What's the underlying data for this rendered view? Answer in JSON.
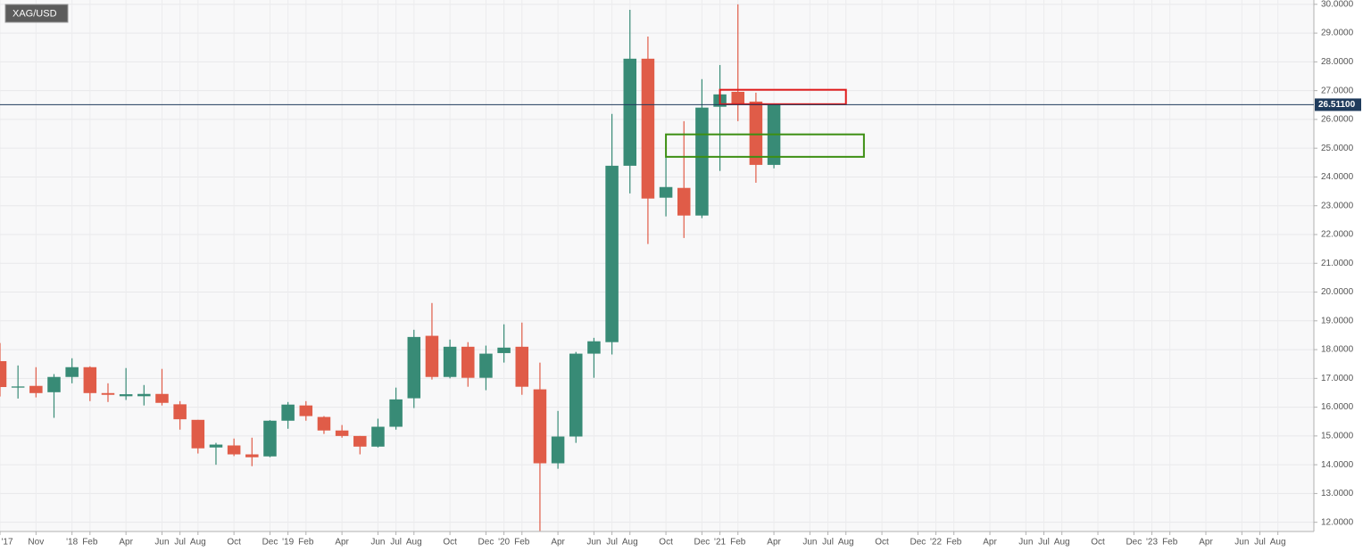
{
  "chart_data": {
    "type": "candlestick",
    "title": "XAG/USD",
    "x": [
      "2017-09",
      "2017-10",
      "2017-11",
      "2017-12",
      "2018-01",
      "2018-02",
      "2018-03",
      "2018-04",
      "2018-05",
      "2018-06",
      "2018-07",
      "2018-08",
      "2018-09",
      "2018-10",
      "2018-11",
      "2018-12",
      "2019-01",
      "2019-02",
      "2019-03",
      "2019-04",
      "2019-05",
      "2019-06",
      "2019-07",
      "2019-08",
      "2019-09",
      "2019-10",
      "2019-11",
      "2019-12",
      "2020-01",
      "2020-02",
      "2020-03",
      "2020-04",
      "2020-05",
      "2020-06",
      "2020-07",
      "2020-08",
      "2020-09",
      "2020-10",
      "2020-11",
      "2020-12",
      "2021-01",
      "2021-02",
      "2021-03",
      "2021-04"
    ],
    "open": [
      17.6,
      16.68,
      16.74,
      16.52,
      17.05,
      17.39,
      16.49,
      16.38,
      16.38,
      16.46,
      16.1,
      15.56,
      14.6,
      14.67,
      14.36,
      14.29,
      15.53,
      16.06,
      15.66,
      15.19,
      15.0,
      14.63,
      15.32,
      16.31,
      18.48,
      17.05,
      18.1,
      17.02,
      17.88,
      18.1,
      16.62,
      14.05,
      14.98,
      17.86,
      18.26,
      24.39,
      28.11,
      23.28,
      23.62,
      22.66,
      26.44,
      26.96,
      26.62,
      24.42
    ],
    "high": [
      18.23,
      17.45,
      17.39,
      17.15,
      17.7,
      17.42,
      16.83,
      17.36,
      16.77,
      17.33,
      16.21,
      15.56,
      14.76,
      14.91,
      14.94,
      15.55,
      16.18,
      16.21,
      15.69,
      15.38,
      15.0,
      15.6,
      16.68,
      18.69,
      19.62,
      18.35,
      18.26,
      18.14,
      18.88,
      18.94,
      17.55,
      15.87,
      17.92,
      18.41,
      26.19,
      29.81,
      28.88,
      24.73,
      25.94,
      27.4,
      27.89,
      30.0,
      26.93,
      26.55
    ],
    "low": [
      16.37,
      16.3,
      16.34,
      15.63,
      16.83,
      16.21,
      16.18,
      16.25,
      16.06,
      16.06,
      15.22,
      14.39,
      14.0,
      14.3,
      13.95,
      14.26,
      15.25,
      15.53,
      15.07,
      14.94,
      14.36,
      14.6,
      15.22,
      15.97,
      16.96,
      17.0,
      16.71,
      16.59,
      17.55,
      16.43,
      11.7,
      13.86,
      14.76,
      17.02,
      17.83,
      23.43,
      21.67,
      22.63,
      21.88,
      22.57,
      24.21,
      25.94,
      23.8,
      24.3
    ],
    "close": [
      16.7,
      16.72,
      16.49,
      17.05,
      17.39,
      16.49,
      16.43,
      16.45,
      16.46,
      16.15,
      15.58,
      14.57,
      14.7,
      14.36,
      14.26,
      15.53,
      16.09,
      15.69,
      15.19,
      15.0,
      14.63,
      15.32,
      16.27,
      18.44,
      17.05,
      18.1,
      17.02,
      17.86,
      18.07,
      16.71,
      14.05,
      14.98,
      17.86,
      18.29,
      24.39,
      28.11,
      23.25,
      23.65,
      22.66,
      26.41,
      26.87,
      26.53,
      24.42,
      26.511
    ],
    "up_color": "#388b76",
    "down_color": "#e05c48",
    "xlim": [
      "2017-09",
      "2023-10"
    ],
    "ylim": [
      11.68,
      30.15
    ],
    "yticks": [
      {
        "value": 12,
        "label": "12.0000"
      },
      {
        "value": 13,
        "label": "13.0000"
      },
      {
        "value": 14,
        "label": "14.0000"
      },
      {
        "value": 15,
        "label": "15.0000"
      },
      {
        "value": 16,
        "label": "16.0000"
      },
      {
        "value": 17,
        "label": "17.0000"
      },
      {
        "value": 18,
        "label": "18.0000"
      },
      {
        "value": 19,
        "label": "19.0000"
      },
      {
        "value": 20,
        "label": "20.0000"
      },
      {
        "value": 21,
        "label": "21.0000"
      },
      {
        "value": 22,
        "label": "22.0000"
      },
      {
        "value": 23,
        "label": "23.0000"
      },
      {
        "value": 24,
        "label": "24.0000"
      },
      {
        "value": 25,
        "label": "25.0000"
      },
      {
        "value": 26,
        "label": "26.0000"
      },
      {
        "value": 27,
        "label": "27.0000"
      },
      {
        "value": 28,
        "label": "28.0000"
      },
      {
        "value": 29,
        "label": "29.0000"
      },
      {
        "value": 30,
        "label": "30.0000"
      }
    ],
    "xticks": [
      {
        "value": "2017-09",
        "label": "'17"
      },
      {
        "value": "2017-11",
        "label": "Nov"
      },
      {
        "value": "2018-01",
        "label": "'18"
      },
      {
        "value": "2018-02",
        "label": "Feb"
      },
      {
        "value": "2018-04",
        "label": "Apr"
      },
      {
        "value": "2018-06",
        "label": "Jun"
      },
      {
        "value": "2018-07",
        "label": "Jul"
      },
      {
        "value": "2018-08",
        "label": "Aug"
      },
      {
        "value": "2018-10",
        "label": "Oct"
      },
      {
        "value": "2018-12",
        "label": "Dec"
      },
      {
        "value": "2019-01",
        "label": "'19"
      },
      {
        "value": "2019-02",
        "label": "Feb"
      },
      {
        "value": "2019-04",
        "label": "Apr"
      },
      {
        "value": "2019-06",
        "label": "Jun"
      },
      {
        "value": "2019-07",
        "label": "Jul"
      },
      {
        "value": "2019-08",
        "label": "Aug"
      },
      {
        "value": "2019-10",
        "label": "Oct"
      },
      {
        "value": "2019-12",
        "label": "Dec"
      },
      {
        "value": "2020-01",
        "label": "'20"
      },
      {
        "value": "2020-02",
        "label": "Feb"
      },
      {
        "value": "2020-04",
        "label": "Apr"
      },
      {
        "value": "2020-06",
        "label": "Jun"
      },
      {
        "value": "2020-07",
        "label": "Jul"
      },
      {
        "value": "2020-08",
        "label": "Aug"
      },
      {
        "value": "2020-10",
        "label": "Oct"
      },
      {
        "value": "2020-12",
        "label": "Dec"
      },
      {
        "value": "2021-01",
        "label": "'21"
      },
      {
        "value": "2021-02",
        "label": "Feb"
      },
      {
        "value": "2021-04",
        "label": "Apr"
      },
      {
        "value": "2021-06",
        "label": "Jun"
      },
      {
        "value": "2021-07",
        "label": "Jul"
      },
      {
        "value": "2021-08",
        "label": "Aug"
      },
      {
        "value": "2021-10",
        "label": "Oct"
      },
      {
        "value": "2021-12",
        "label": "Dec"
      },
      {
        "value": "2022-01",
        "label": "'22"
      },
      {
        "value": "2022-02",
        "label": "Feb"
      },
      {
        "value": "2022-04",
        "label": "Apr"
      },
      {
        "value": "2022-06",
        "label": "Jun"
      },
      {
        "value": "2022-07",
        "label": "Jul"
      },
      {
        "value": "2022-08",
        "label": "Aug"
      },
      {
        "value": "2022-10",
        "label": "Oct"
      },
      {
        "value": "2022-12",
        "label": "Dec"
      },
      {
        "value": "2023-01",
        "label": "'23"
      },
      {
        "value": "2023-02",
        "label": "Feb"
      },
      {
        "value": "2023-04",
        "label": "Apr"
      },
      {
        "value": "2023-06",
        "label": "Jun"
      },
      {
        "value": "2023-07",
        "label": "Jul"
      },
      {
        "value": "2023-08",
        "label": "Aug"
      }
    ],
    "grid": true,
    "price_line": {
      "value": 26.511,
      "label": "26.51100",
      "color": "#1f3b5c"
    },
    "zones": [
      {
        "color": "#e01b1b",
        "x0": "2021-01",
        "x1": "2021-08",
        "top": 27.03,
        "bottom": 26.53
      },
      {
        "color": "#3d8f13",
        "x0": "2020-10",
        "x1": "2021-09",
        "top": 25.48,
        "bottom": 24.7
      }
    ]
  }
}
